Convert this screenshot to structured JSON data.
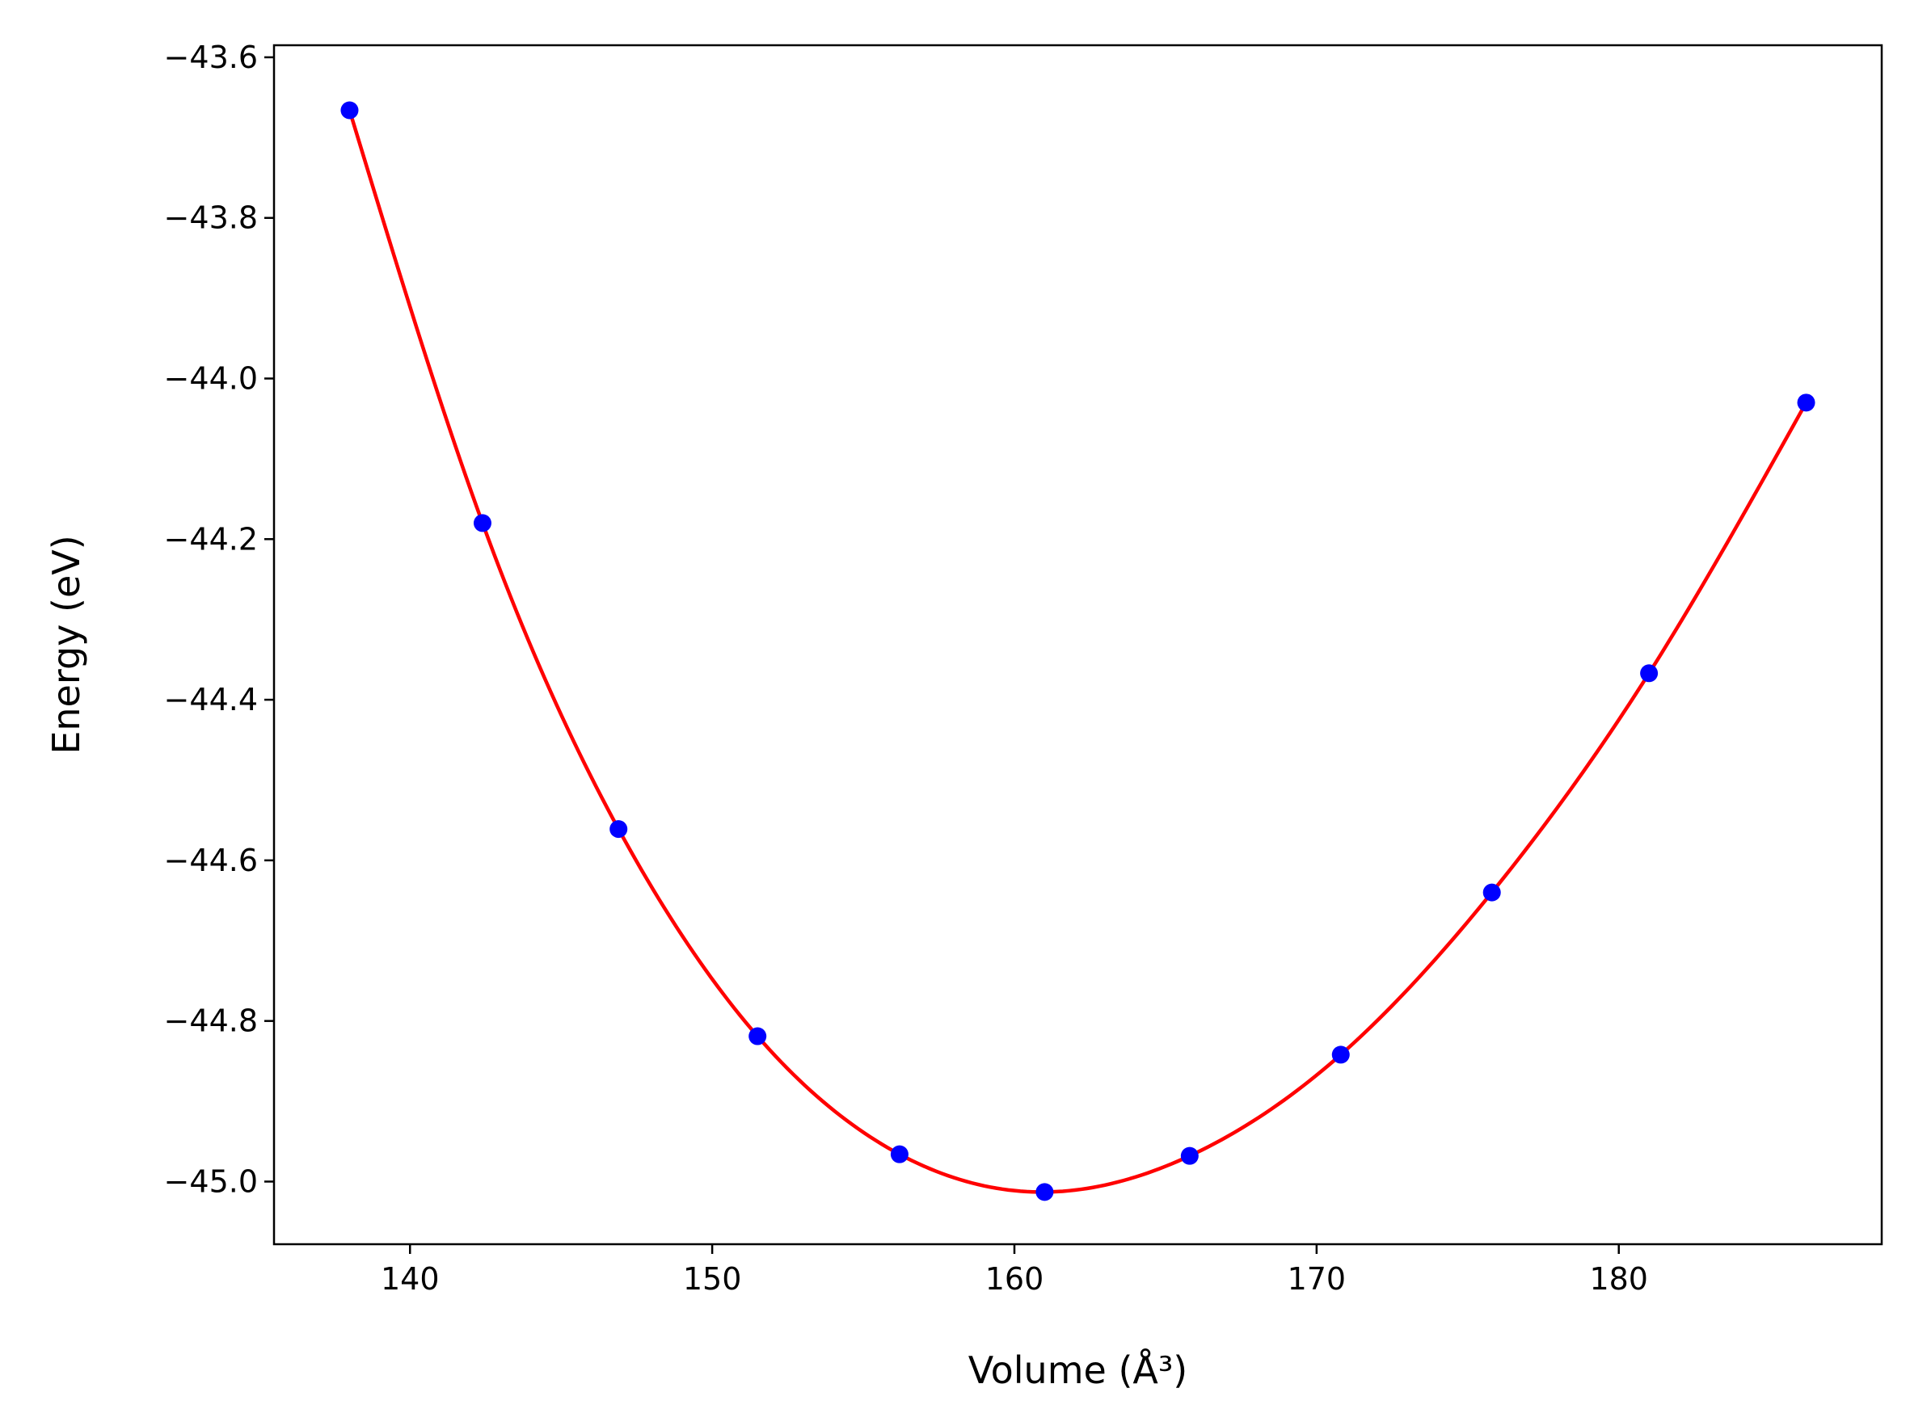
{
  "chart_data": {
    "type": "line",
    "xlabel": "Volume (Å³)",
    "ylabel": "Energy (eV)",
    "xlim": [
      135.5,
      188.7
    ],
    "ylim": [
      -45.078,
      -43.585
    ],
    "x_ticks": [
      140,
      150,
      160,
      170,
      180
    ],
    "x_tick_labels": [
      "140",
      "150",
      "160",
      "170",
      "180"
    ],
    "y_ticks": [
      -45.0,
      -44.8,
      -44.6,
      -44.4,
      -44.2,
      -44.0,
      -43.8,
      -43.6
    ],
    "y_tick_labels": [
      "−45.0",
      "−44.8",
      "−44.6",
      "−44.4",
      "−44.2",
      "−44.0",
      "−43.8",
      "−43.6"
    ],
    "grid": false,
    "series": [
      {
        "kind": "scatter",
        "color": "#0000ff",
        "x": [
          138.0,
          142.4,
          146.9,
          151.5,
          156.2,
          161.0,
          165.8,
          170.8,
          175.8,
          181.0,
          186.2
        ],
        "y": [
          -43.666,
          -44.18,
          -44.561,
          -44.819,
          -44.966,
          -45.013,
          -44.968,
          -44.842,
          -44.64,
          -44.367,
          -44.03
        ]
      },
      {
        "kind": "fit-line",
        "color": "#ff0000",
        "x": [
          138.0,
          142.4,
          146.9,
          151.5,
          156.2,
          161.0,
          165.8,
          170.8,
          175.8,
          181.0,
          186.2
        ],
        "y": [
          -43.666,
          -44.18,
          -44.561,
          -44.819,
          -44.966,
          -45.013,
          -44.968,
          -44.842,
          -44.64,
          -44.367,
          -44.03
        ]
      }
    ]
  }
}
